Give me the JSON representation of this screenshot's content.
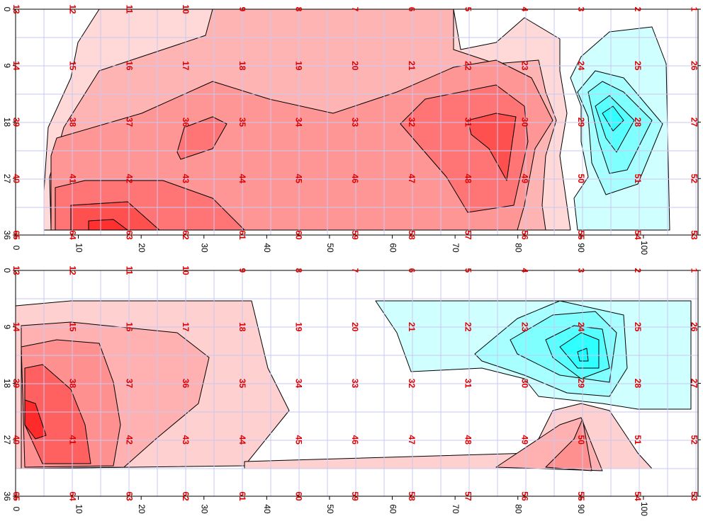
{
  "chart_data": [
    {
      "type": "contour",
      "xlim": [
        0,
        108.7
      ],
      "ylim": [
        0,
        36
      ],
      "xticks": [
        0,
        10,
        20,
        30,
        40,
        50,
        60,
        70,
        80,
        90,
        100
      ],
      "yticks": [
        0,
        9,
        18,
        27,
        36
      ],
      "station_labels": [
        [
          13,
          12,
          11,
          10,
          9,
          8,
          7,
          6,
          5,
          4,
          3,
          2,
          1
        ],
        [
          14,
          15,
          16,
          17,
          18,
          19,
          20,
          21,
          22,
          23,
          24,
          25,
          26
        ],
        [
          39,
          38,
          37,
          36,
          35,
          34,
          33,
          32,
          31,
          30,
          29,
          28,
          27
        ],
        [
          40,
          41,
          42,
          43,
          44,
          45,
          46,
          47,
          48,
          49,
          50,
          51,
          52
        ],
        [
          65,
          64,
          63,
          62,
          61,
          60,
          59,
          58,
          57,
          56,
          55,
          54,
          53
        ]
      ]
    },
    {
      "type": "contour",
      "xlim": [
        0,
        108.7
      ],
      "ylim": [
        0,
        36
      ],
      "xticks": [
        0,
        10,
        20,
        30,
        40,
        50,
        60,
        70,
        80,
        90,
        100
      ],
      "yticks": [
        0,
        9,
        18,
        27,
        36
      ],
      "station_labels": [
        [
          13,
          12,
          11,
          10,
          9,
          8,
          7,
          6,
          5,
          4,
          3,
          2,
          1
        ],
        [
          14,
          15,
          16,
          17,
          18,
          19,
          20,
          21,
          22,
          23,
          24,
          25,
          26
        ],
        [
          39,
          38,
          37,
          36,
          35,
          34,
          33,
          32,
          31,
          30,
          29,
          28,
          27
        ],
        [
          40,
          41,
          42,
          43,
          44,
          45,
          46,
          47,
          48,
          49,
          50,
          51,
          52
        ],
        [
          65,
          64,
          63,
          62,
          61,
          60,
          59,
          58,
          57,
          56,
          55,
          54,
          53
        ]
      ]
    }
  ]
}
